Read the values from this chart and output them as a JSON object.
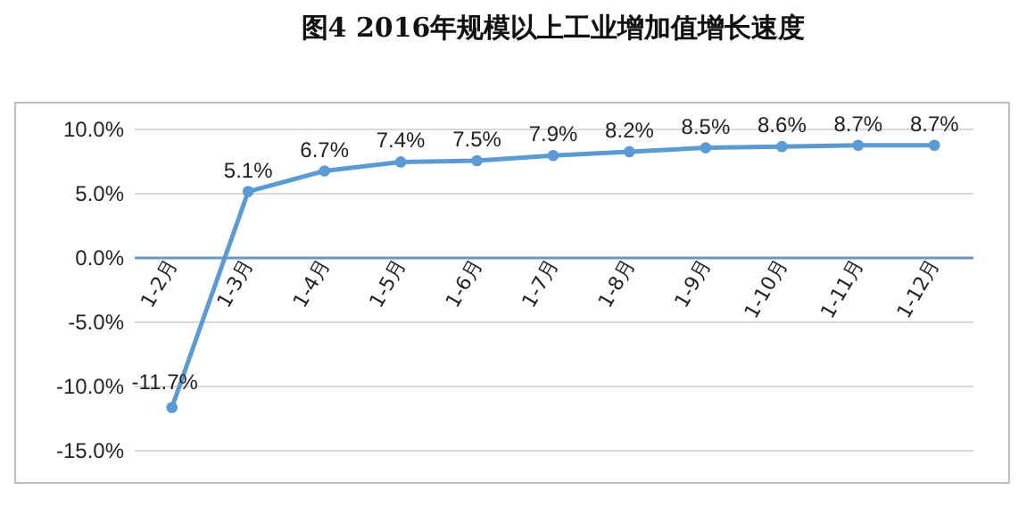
{
  "chart_data": {
    "type": "line",
    "title": "图4 2016年规模以上工业增加值增长速度",
    "categories": [
      "1-2月",
      "1-3月",
      "1-4月",
      "1-5月",
      "1-6月",
      "1-7月",
      "1-8月",
      "1-9月",
      "1-10月",
      "1-11月",
      "1-12月"
    ],
    "series": [
      {
        "color": "#5b9bd5",
        "values": [
          -11.7,
          5.1,
          6.7,
          7.4,
          7.5,
          7.9,
          8.2,
          8.5,
          8.6,
          8.7,
          8.7
        ],
        "value_labels": [
          "-11.7%",
          "5.1%",
          "6.7%",
          "7.4%",
          "7.5%",
          "7.9%",
          "8.2%",
          "8.5%",
          "8.6%",
          "8.7%",
          "8.7%"
        ]
      }
    ],
    "ylim": [
      -15,
      10
    ],
    "yticks": [
      {
        "value": -15,
        "label": "-15.0%"
      },
      {
        "value": -10,
        "label": "-10.0%"
      },
      {
        "value": -5,
        "label": "-5.0%"
      },
      {
        "value": 0,
        "label": "0.0%"
      },
      {
        "value": 5,
        "label": "5.0%"
      },
      {
        "value": 10,
        "label": "10.0%"
      }
    ],
    "grid": "y",
    "marker": "circle",
    "line_style": "solid"
  }
}
